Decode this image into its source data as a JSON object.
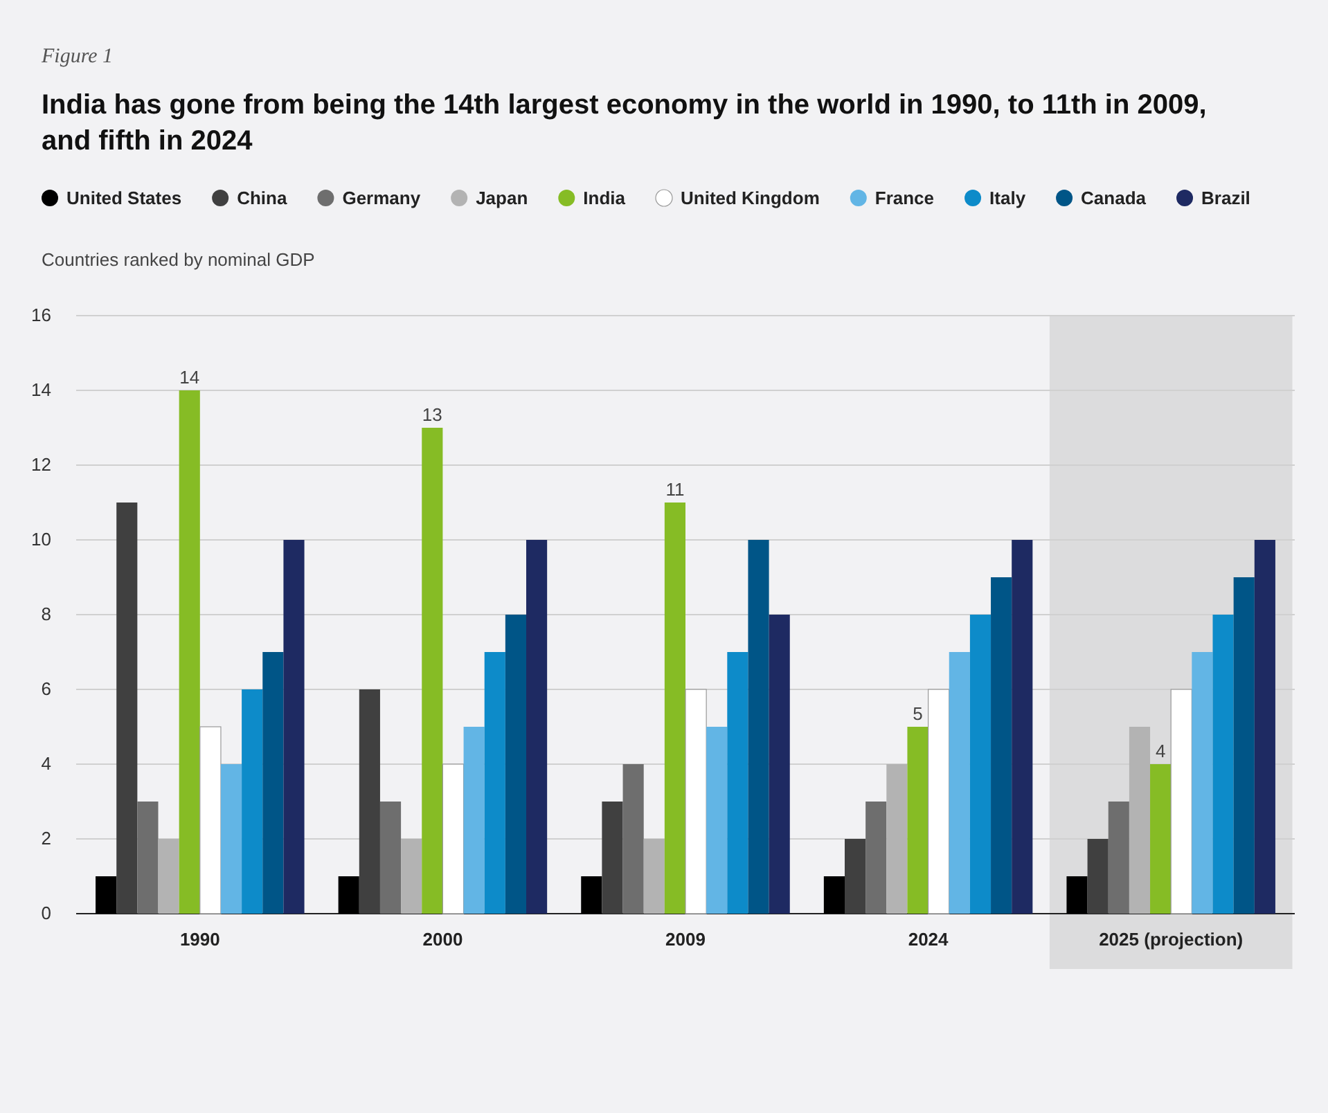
{
  "chart_data": {
    "type": "bar",
    "title": "India has gone from being the 14th largest economy in the world in 1990, to 11th in 2009, and fifth in 2024",
    "ylabel": "Countries ranked by nominal GDP",
    "annotations": [
      "Figure 1"
    ],
    "categories": [
      "1990",
      "2000",
      "2009",
      "2024",
      "2025 (projection)"
    ],
    "series": [
      {
        "name": "United States",
        "color": "#000000",
        "values": [
          1,
          1,
          1,
          1,
          1
        ]
      },
      {
        "name": "China",
        "color": "#404040",
        "values": [
          11,
          6,
          3,
          2,
          2
        ]
      },
      {
        "name": "Germany",
        "color": "#6e6e6e",
        "values": [
          3,
          3,
          4,
          3,
          3
        ]
      },
      {
        "name": "Japan",
        "color": "#b3b3b3",
        "values": [
          2,
          2,
          2,
          4,
          5
        ]
      },
      {
        "name": "India",
        "color": "#86bc25",
        "values": [
          14,
          13,
          11,
          5,
          4
        ],
        "value_labels": [
          "14",
          "13",
          "11",
          "5",
          "4"
        ]
      },
      {
        "name": "United Kingdom",
        "color": "#ffffff",
        "values": [
          5,
          4,
          6,
          6,
          6
        ]
      },
      {
        "name": "France",
        "color": "#62b5e5",
        "values": [
          4,
          5,
          5,
          7,
          7
        ]
      },
      {
        "name": "Italy",
        "color": "#0d8bc9",
        "values": [
          6,
          7,
          7,
          8,
          8
        ]
      },
      {
        "name": "Canada",
        "color": "#005587",
        "values": [
          7,
          8,
          10,
          9,
          9
        ]
      },
      {
        "name": "Brazil",
        "color": "#1e2a62",
        "values": [
          10,
          10,
          8,
          10,
          10
        ]
      }
    ],
    "ylim": [
      0,
      16
    ],
    "yticks": [
      0,
      2,
      4,
      6,
      8,
      10,
      12,
      14,
      16
    ],
    "grid": "y",
    "legend": "top",
    "bands": [
      {
        "axis": "x",
        "from": "2025 (projection)",
        "to": "2025 (projection)",
        "color": "#dcdcdd"
      }
    ]
  }
}
